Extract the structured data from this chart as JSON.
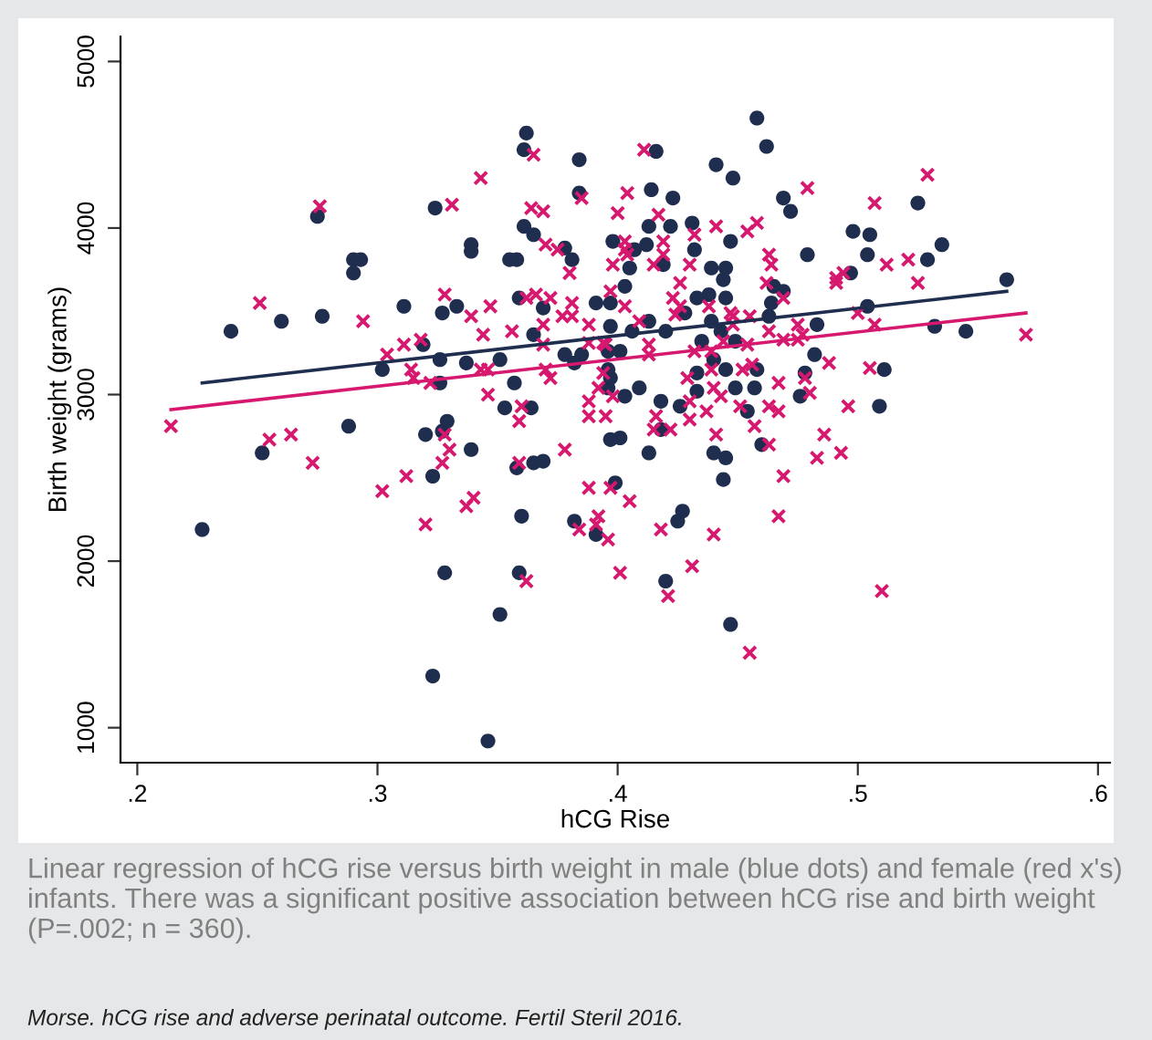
{
  "chart_data": {
    "type": "scatter",
    "xlabel": "hCG Rise",
    "ylabel": "Birth weight (grams)",
    "xlim": [
      0.193,
      0.605
    ],
    "ylim": [
      790,
      5150
    ],
    "xticks": [
      {
        "value": 0.2,
        "label": ".2"
      },
      {
        "value": 0.3,
        "label": ".3"
      },
      {
        "value": 0.4,
        "label": ".4"
      },
      {
        "value": 0.5,
        "label": ".5"
      },
      {
        "value": 0.6,
        "label": ".6"
      }
    ],
    "yticks": [
      1000,
      2000,
      3000,
      4000,
      5000
    ],
    "grid": false,
    "legend": false,
    "annotations": [
      "Linear regression of hCG rise versus birth weight in male (blue dots) and female (red x's) infants. There was a significant positive association between hCG rise and birth weight (P=.002; n = 360).",
      "Morse. hCG rise and adverse perinatal outcome. Fertil Steril 2016."
    ],
    "series": [
      {
        "type": "scatter",
        "marker": "circle",
        "color": "#1f2d4f",
        "x": [
          0.362,
          0.361,
          0.384,
          0.384,
          0.275,
          0.324,
          0.29,
          0.293,
          0.29,
          0.361,
          0.365,
          0.355,
          0.358,
          0.381,
          0.339,
          0.339,
          0.378,
          0.239,
          0.26,
          0.277,
          0.311,
          0.327,
          0.333,
          0.359,
          0.302,
          0.326,
          0.337,
          0.351,
          0.357,
          0.326,
          0.319,
          0.365,
          0.369,
          0.378,
          0.385,
          0.382,
          0.391,
          0.397,
          0.398,
          0.396,
          0.396,
          0.396,
          0.458,
          0.462,
          0.416,
          0.441,
          0.448,
          0.414,
          0.423,
          0.469,
          0.472,
          0.431,
          0.422,
          0.413,
          0.412,
          0.407,
          0.432,
          0.447,
          0.405,
          0.419,
          0.439,
          0.445,
          0.498,
          0.505,
          0.504,
          0.479,
          0.525,
          0.535,
          0.529,
          0.497,
          0.403,
          0.444,
          0.438,
          0.445,
          0.433,
          0.465,
          0.469,
          0.464,
          0.504,
          0.413,
          0.428,
          0.439,
          0.463,
          0.397,
          0.406,
          0.42,
          0.443,
          0.483,
          0.532,
          0.545,
          0.562,
          0.401,
          0.435,
          0.449,
          0.482,
          0.44,
          0.433,
          0.445,
          0.458,
          0.478,
          0.511,
          0.409,
          0.433,
          0.449,
          0.457,
          0.397,
          0.403,
          0.454,
          0.476,
          0.509,
          0.418,
          0.426,
          0.418,
          0.401,
          0.413,
          0.44,
          0.445,
          0.444,
          0.46,
          0.399,
          0.427,
          0.425,
          0.42,
          0.447,
          0.288,
          0.252,
          0.227,
          0.32,
          0.327,
          0.329,
          0.323,
          0.339,
          0.353,
          0.364,
          0.358,
          0.365,
          0.369,
          0.36,
          0.382,
          0.391,
          0.397,
          0.328,
          0.359,
          0.351,
          0.323,
          0.346
        ],
        "values": [
          4570,
          4470,
          4410,
          4210,
          4070,
          4120,
          3810,
          3810,
          3730,
          4010,
          3960,
          3810,
          3810,
          3810,
          3900,
          3860,
          3880,
          3380,
          3440,
          3470,
          3530,
          3490,
          3530,
          3580,
          3150,
          3210,
          3190,
          3210,
          3070,
          3070,
          3300,
          3360,
          3520,
          3240,
          3240,
          3190,
          3550,
          3550,
          3920,
          3260,
          3150,
          3040,
          4660,
          4490,
          4460,
          4380,
          4300,
          4230,
          4180,
          4180,
          4100,
          4030,
          4010,
          4010,
          3900,
          3870,
          3870,
          3920,
          3760,
          3780,
          3760,
          3760,
          3980,
          3960,
          3840,
          3840,
          4150,
          3900,
          3810,
          3730,
          3650,
          3690,
          3600,
          3580,
          3580,
          3650,
          3620,
          3550,
          3530,
          3440,
          3490,
          3440,
          3470,
          3410,
          3380,
          3380,
          3380,
          3420,
          3410,
          3380,
          3690,
          3260,
          3320,
          3320,
          3240,
          3210,
          3130,
          3150,
          3150,
          3130,
          3150,
          3040,
          3020,
          3040,
          3040,
          3100,
          2990,
          2900,
          2990,
          2930,
          2960,
          2930,
          2790,
          2740,
          2650,
          2650,
          2620,
          2490,
          2700,
          2470,
          2300,
          2240,
          1880,
          1620,
          2810,
          2650,
          2190,
          2760,
          2780,
          2840,
          2510,
          2670,
          2920,
          2920,
          2560,
          2590,
          2600,
          2270,
          2240,
          2160,
          2730,
          1930,
          1930,
          1680,
          1310,
          920
        ]
      },
      {
        "type": "scatter",
        "marker": "cross",
        "color": "#d6186f",
        "x": [
          0.276,
          0.251,
          0.294,
          0.304,
          0.311,
          0.318,
          0.314,
          0.315,
          0.322,
          0.331,
          0.343,
          0.328,
          0.339,
          0.347,
          0.344,
          0.356,
          0.343,
          0.346,
          0.365,
          0.385,
          0.364,
          0.369,
          0.37,
          0.375,
          0.38,
          0.381,
          0.362,
          0.366,
          0.372,
          0.377,
          0.381,
          0.369,
          0.388,
          0.369,
          0.388,
          0.394,
          0.397,
          0.398,
          0.4,
          0.37,
          0.372,
          0.392,
          0.346,
          0.411,
          0.404,
          0.417,
          0.441,
          0.454,
          0.458,
          0.479,
          0.507,
          0.529,
          0.403,
          0.403,
          0.404,
          0.419,
          0.432,
          0.415,
          0.43,
          0.419,
          0.463,
          0.464,
          0.426,
          0.462,
          0.469,
          0.491,
          0.491,
          0.494,
          0.512,
          0.521,
          0.525,
          0.423,
          0.403,
          0.426,
          0.424,
          0.447,
          0.448,
          0.455,
          0.5,
          0.507,
          0.409,
          0.438,
          0.448,
          0.463,
          0.469,
          0.475,
          0.477,
          0.475,
          0.444,
          0.454,
          0.432,
          0.439,
          0.413,
          0.413,
          0.395,
          0.57,
          0.488,
          0.505,
          0.452,
          0.439,
          0.429,
          0.44,
          0.467,
          0.478,
          0.48,
          0.456,
          0.443,
          0.43,
          0.437,
          0.43,
          0.415,
          0.422,
          0.416,
          0.451,
          0.463,
          0.467,
          0.457,
          0.441,
          0.463,
          0.496,
          0.486,
          0.483,
          0.493,
          0.469,
          0.467,
          0.397,
          0.405,
          0.418,
          0.396,
          0.44,
          0.431,
          0.401,
          0.421,
          0.51,
          0.455,
          0.214,
          0.255,
          0.264,
          0.273,
          0.302,
          0.312,
          0.32,
          0.327,
          0.33,
          0.328,
          0.337,
          0.34,
          0.359,
          0.36,
          0.359,
          0.362,
          0.378,
          0.388,
          0.388,
          0.395,
          0.388,
          0.384,
          0.391,
          0.392,
          0.394,
          0.398
        ],
        "values": [
          4130,
          3550,
          3440,
          3240,
          3300,
          3330,
          3150,
          3100,
          3070,
          4140,
          4300,
          3600,
          3470,
          3530,
          3360,
          3380,
          3150,
          3150,
          4440,
          4180,
          4120,
          4100,
          3900,
          3870,
          3730,
          3550,
          3580,
          3600,
          3580,
          3470,
          3470,
          3420,
          3420,
          3300,
          3310,
          3310,
          3620,
          3780,
          4090,
          3150,
          3100,
          3040,
          3000,
          4470,
          4210,
          4080,
          4010,
          3980,
          4030,
          4240,
          4150,
          4320,
          3920,
          3870,
          3840,
          3920,
          3960,
          3780,
          3780,
          3840,
          3840,
          3780,
          3670,
          3670,
          3580,
          3700,
          3670,
          3730,
          3780,
          3810,
          3670,
          3580,
          3530,
          3530,
          3480,
          3490,
          3470,
          3470,
          3490,
          3420,
          3440,
          3530,
          3420,
          3380,
          3330,
          3330,
          3360,
          3420,
          3320,
          3300,
          3260,
          3260,
          3300,
          3240,
          3300,
          3360,
          3190,
          3160,
          3150,
          3150,
          3100,
          3040,
          3070,
          3100,
          3010,
          3180,
          2990,
          2960,
          2900,
          2850,
          2790,
          2790,
          2870,
          2930,
          2930,
          2900,
          2810,
          2760,
          2700,
          2930,
          2760,
          2620,
          2650,
          2510,
          2270,
          2440,
          2360,
          2190,
          2130,
          2160,
          1970,
          1930,
          1790,
          1820,
          1450,
          2810,
          2730,
          2760,
          2590,
          2420,
          2510,
          2220,
          2590,
          2670,
          2760,
          2330,
          2380,
          2840,
          2930,
          2590,
          1880,
          2670,
          2960,
          2870,
          2870,
          2440,
          2190,
          2220,
          2270,
          3130,
          2990
        ]
      },
      {
        "type": "line",
        "line_style": "solid",
        "color": "#1f2d4f",
        "x": [
          0.227,
          0.562
        ],
        "values": [
          3070,
          3620
        ]
      },
      {
        "type": "line",
        "line_style": "solid",
        "color": "#d6186f",
        "x": [
          0.214,
          0.57
        ],
        "values": [
          2910,
          3490
        ]
      }
    ]
  }
}
